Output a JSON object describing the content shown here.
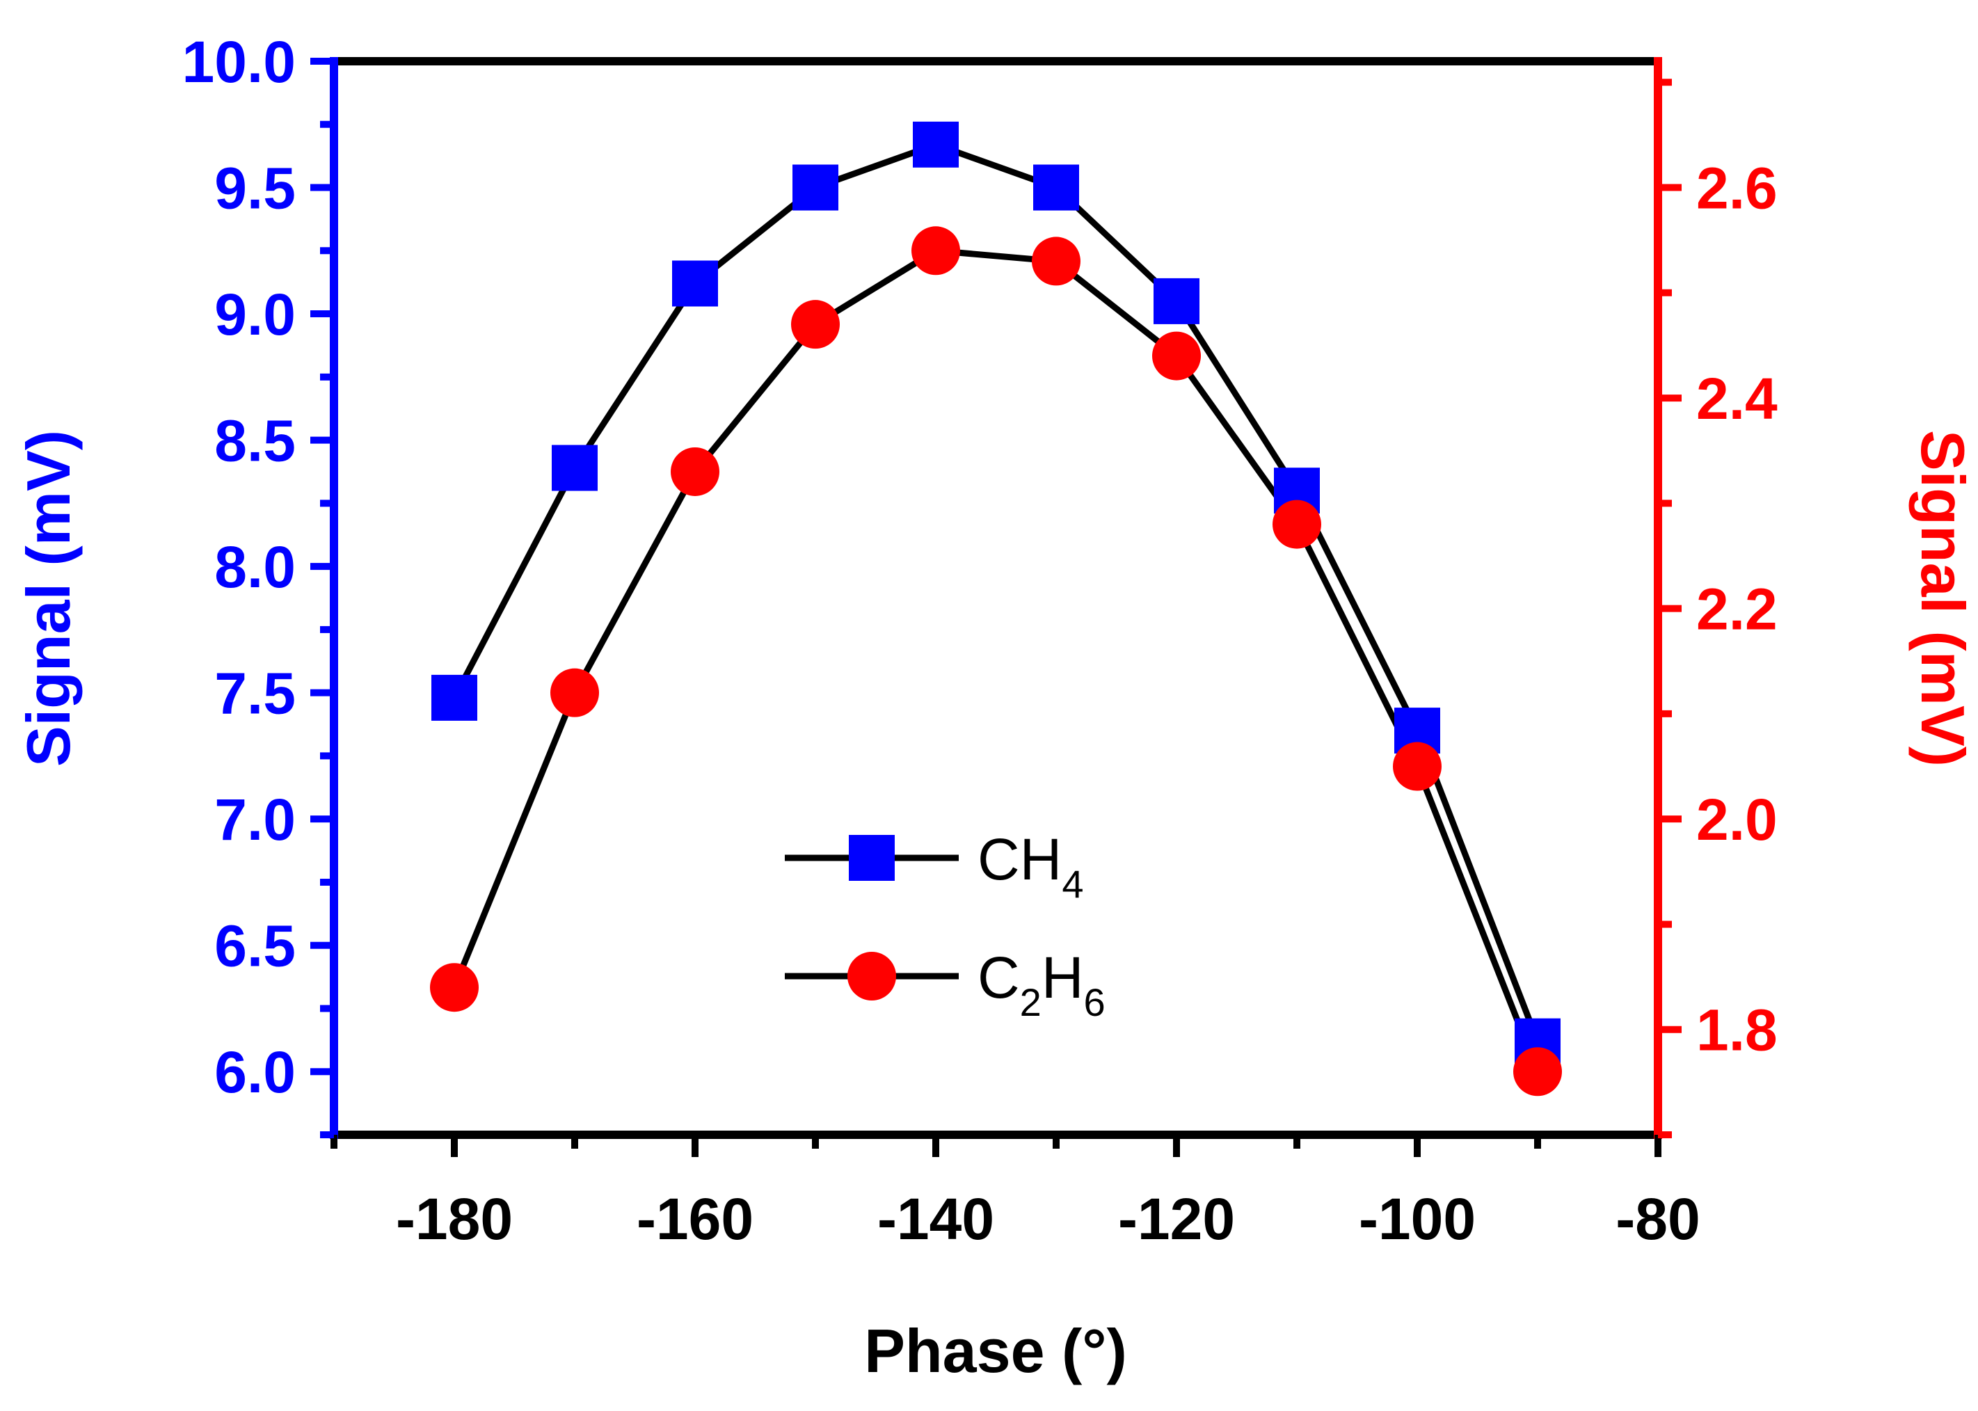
{
  "chart_data": {
    "type": "line",
    "title": "",
    "xlabel": "Phase (°)",
    "ylabel_left": "Signal (mV)",
    "ylabel_right": "Signal (mV)",
    "xlim": [
      -190,
      -80
    ],
    "ylim_left": [
      5.75,
      10.0
    ],
    "ylim_right": [
      1.7,
      2.72
    ],
    "x_ticks": [
      -180,
      -160,
      -140,
      -120,
      -100,
      -80
    ],
    "x_tick_labels": [
      "-180",
      "-160",
      "-140",
      "-120",
      "-100",
      "-80"
    ],
    "y_left_ticks": [
      6.0,
      6.5,
      7.0,
      7.5,
      8.0,
      8.5,
      9.0,
      9.5,
      10.0
    ],
    "y_left_tick_labels": [
      "6.0",
      "6.5",
      "7.0",
      "7.5",
      "8.0",
      "8.5",
      "9.0",
      "9.5",
      "10.0"
    ],
    "y_right_ticks": [
      1.8,
      2.0,
      2.2,
      2.4,
      2.6
    ],
    "y_right_tick_labels": [
      "1.8",
      "2.0",
      "2.2",
      "2.4",
      "2.6"
    ],
    "grid": false,
    "legend_position": "bottom-center",
    "colors": {
      "left_axis": "#0000ff",
      "right_axis": "#ff0000",
      "frame": "#000000",
      "line": "#000000",
      "ch4_marker": "#0000ff",
      "c2h6_marker": "#ff0000"
    },
    "series": [
      {
        "name": "CH4",
        "legend_main": "CH",
        "legend_sub": "4",
        "marker": "square",
        "axis": "left",
        "x": [
          -180,
          -170,
          -160,
          -150,
          -140,
          -130,
          -120,
          -110,
          -100,
          -90
        ],
        "values": [
          7.48,
          8.39,
          9.12,
          9.5,
          9.67,
          9.5,
          9.05,
          8.3,
          7.35,
          6.12
        ]
      },
      {
        "name": "C2H6",
        "legend_main": "C",
        "legend_sub1": "2",
        "legend_main2": "H",
        "legend_sub2": "6",
        "marker": "circle",
        "axis": "right",
        "x": [
          -180,
          -170,
          -160,
          -150,
          -140,
          -130,
          -120,
          -110,
          -100,
          -90
        ],
        "values": [
          1.84,
          2.12,
          2.33,
          2.47,
          2.54,
          2.53,
          2.44,
          2.28,
          2.05,
          1.76
        ]
      }
    ]
  }
}
